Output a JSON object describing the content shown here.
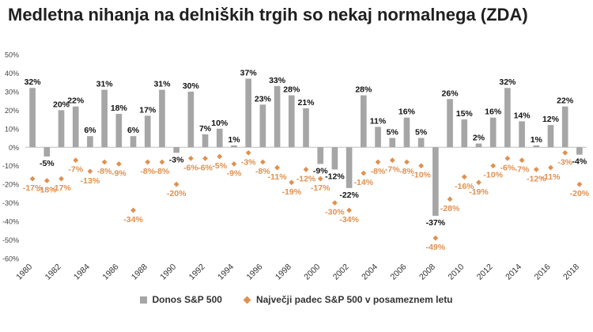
{
  "chart_data": {
    "type": "bar",
    "title": "Medletna nihanja na delniških trgih so nekaj normalnega (ZDA)",
    "ylim": [
      -60,
      50
    ],
    "yticks": [
      -60,
      -50,
      -40,
      -30,
      -20,
      -10,
      0,
      10,
      20,
      30,
      40,
      50
    ],
    "ytick_labels": [
      "-60%",
      "-50%",
      "-40%",
      "-30%",
      "-20%",
      "-10%",
      "0%",
      "10%",
      "20%",
      "30%",
      "40%",
      "50%"
    ],
    "categories": [
      1980,
      1981,
      1982,
      1983,
      1984,
      1985,
      1986,
      1987,
      1988,
      1989,
      1990,
      1991,
      1992,
      1993,
      1994,
      1995,
      1996,
      1997,
      1998,
      1999,
      2000,
      2001,
      2002,
      2003,
      2004,
      2005,
      2006,
      2007,
      2008,
      2009,
      2010,
      2011,
      2012,
      2013,
      2014,
      2015,
      2016,
      2017,
      2018
    ],
    "xtick_labels": [
      "1980",
      "1982",
      "1984",
      "1986",
      "1988",
      "1990",
      "1992",
      "1994",
      "1996",
      "1998",
      "2000",
      "2002",
      "2004",
      "2006",
      "2008",
      "2010",
      "2012",
      "2014",
      "2016",
      "2018"
    ],
    "series": [
      {
        "name": "Donos S&P 500",
        "type": "bar",
        "color": "#a6a6a6",
        "values": [
          32,
          -5,
          20,
          22,
          6,
          31,
          18,
          6,
          17,
          31,
          -3,
          30,
          7,
          10,
          1,
          37,
          23,
          33,
          28,
          21,
          -9,
          -12,
          -22,
          28,
          11,
          5,
          16,
          5,
          -37,
          26,
          15,
          2,
          16,
          32,
          14,
          1,
          12,
          22,
          -4
        ],
        "labels": [
          "32%",
          "-5%",
          "20%",
          "22%",
          "6%",
          "31%",
          "18%",
          "6%",
          "17%",
          "31%",
          "-3%",
          "30%",
          "7%",
          "10%",
          "1%",
          "37%",
          "23%",
          "33%",
          "28%",
          "21%",
          "-9%",
          "-12%",
          "-22%",
          "28%",
          "11%",
          "5%",
          "16%",
          "5%",
          "-37%",
          "26%",
          "15%",
          "2%",
          "16%",
          "32%",
          "14%",
          "1%",
          "12%",
          "22%",
          "-4%"
        ]
      },
      {
        "name": "Največji padec S&P 500 v posameznem letu",
        "type": "scatter",
        "color": "#e0904f",
        "values": [
          -17,
          -18,
          -17,
          -7,
          -13,
          -8,
          -9,
          -34,
          -8,
          -8,
          -20,
          -6,
          -6,
          -5,
          -9,
          -3,
          -8,
          -11,
          -19,
          -12,
          -17,
          -30,
          -34,
          -14,
          -8,
          -7,
          -8,
          -10,
          -49,
          -28,
          -16,
          -19,
          -10,
          -6,
          -7,
          -12,
          -11,
          -3,
          -20
        ],
        "labels": [
          "-17%",
          "-18%",
          "-17%",
          "-7%",
          "-13%",
          "-8%",
          "-9%",
          "-34%",
          "-8%",
          "-8%",
          "-20%",
          "-6%",
          "-6%",
          "-5%",
          "-9%",
          "-3%",
          "-8%",
          "-11%",
          "-19%",
          "-12%",
          "-17%",
          "-30%",
          "-34%",
          "-14%",
          "-8%",
          "-7%",
          "-8%",
          "-10%",
          "-49%",
          "-28%",
          "-16%",
          "-19%",
          "-10%",
          "-6%",
          "-7%",
          "-12%",
          "-11%",
          "-3%",
          "-20%"
        ]
      }
    ],
    "legend": "bottom"
  }
}
